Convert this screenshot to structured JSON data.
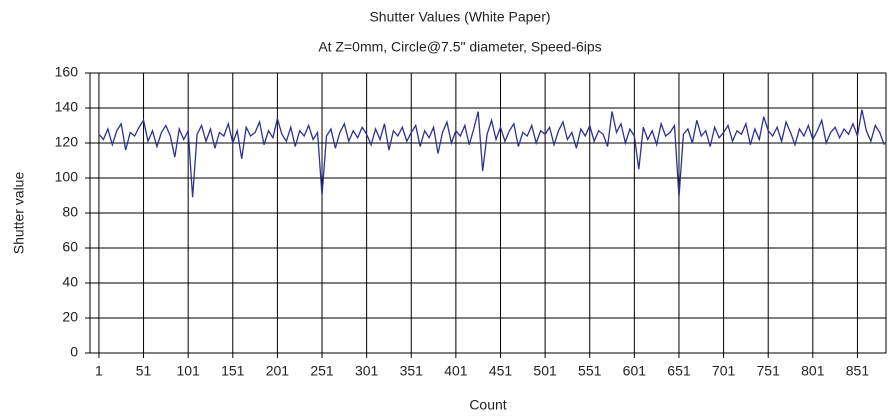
{
  "chart_data": {
    "type": "line",
    "title": "Shutter Values (White Paper)",
    "subtitle": "At Z=0mm, Circle@7.5\" diameter, Speed-6ips",
    "x_label": "Count",
    "y_label": "Shutter value",
    "xlim": [
      -9,
      883
    ],
    "xticks": [
      1,
      51,
      101,
      151,
      201,
      251,
      301,
      351,
      401,
      451,
      501,
      551,
      601,
      651,
      701,
      751,
      801,
      851
    ],
    "ylim": [
      0,
      160
    ],
    "yticks": [
      0,
      20,
      40,
      60,
      80,
      100,
      120,
      140,
      160
    ],
    "grid": true,
    "x": [
      1,
      6,
      11,
      16,
      21,
      26,
      31,
      36,
      41,
      46,
      51,
      56,
      61,
      66,
      71,
      76,
      81,
      86,
      91,
      96,
      101,
      106,
      111,
      116,
      121,
      126,
      131,
      136,
      141,
      146,
      151,
      156,
      161,
      166,
      171,
      176,
      181,
      186,
      191,
      196,
      201,
      206,
      211,
      216,
      221,
      226,
      231,
      236,
      241,
      246,
      251,
      256,
      261,
      266,
      271,
      276,
      281,
      286,
      291,
      296,
      301,
      306,
      311,
      316,
      321,
      326,
      331,
      336,
      341,
      346,
      351,
      356,
      361,
      366,
      371,
      376,
      381,
      386,
      391,
      396,
      401,
      406,
      411,
      416,
      421,
      426,
      431,
      436,
      441,
      446,
      451,
      456,
      461,
      466,
      471,
      476,
      481,
      486,
      491,
      496,
      501,
      506,
      511,
      516,
      521,
      526,
      531,
      536,
      541,
      546,
      551,
      556,
      561,
      566,
      571,
      576,
      581,
      586,
      591,
      596,
      601,
      606,
      611,
      616,
      621,
      626,
      631,
      636,
      641,
      646,
      651,
      656,
      661,
      666,
      671,
      676,
      681,
      686,
      691,
      696,
      701,
      706,
      711,
      716,
      721,
      726,
      731,
      736,
      741,
      746,
      751,
      756,
      761,
      766,
      771,
      776,
      781,
      786,
      791,
      796,
      801,
      806,
      811,
      816,
      821,
      826,
      831,
      836,
      841,
      846,
      851,
      856,
      861,
      866,
      871,
      876,
      881
    ],
    "series": [
      {
        "name": "Shutter value",
        "color": "#2e3192",
        "values": [
          125,
          122,
          128,
          119,
          127,
          131,
          116,
          126,
          124,
          129,
          133,
          121,
          127,
          118,
          126,
          130,
          124,
          112,
          128,
          122,
          127,
          89,
          125,
          130,
          121,
          128,
          117,
          126,
          124,
          131,
          120,
          127,
          111,
          129,
          124,
          126,
          132,
          119,
          127,
          123,
          134,
          125,
          121,
          129,
          118,
          127,
          124,
          130,
          122,
          126,
          90,
          124,
          128,
          117,
          126,
          131,
          121,
          127,
          123,
          129,
          125,
          119,
          128,
          122,
          131,
          116,
          127,
          124,
          129,
          121,
          126,
          130,
          118,
          127,
          123,
          129,
          114,
          126,
          132,
          120,
          127,
          124,
          130,
          119,
          128,
          138,
          104,
          125,
          133,
          122,
          129,
          121,
          127,
          131,
          118,
          126,
          124,
          130,
          120,
          127,
          125,
          129,
          119,
          127,
          132,
          122,
          126,
          117,
          128,
          124,
          130,
          121,
          127,
          125,
          118,
          138,
          126,
          131,
          120,
          128,
          124,
          105,
          129,
          122,
          127,
          119,
          131,
          124,
          126,
          130,
          89,
          125,
          128,
          120,
          133,
          124,
          127,
          118,
          129,
          123,
          126,
          130,
          121,
          127,
          125,
          131,
          119,
          128,
          122,
          135,
          127,
          124,
          129,
          121,
          132,
          126,
          119,
          128,
          124,
          130,
          122,
          127,
          133,
          120,
          126,
          129,
          123,
          128,
          125,
          131,
          124,
          139,
          127,
          121,
          130,
          126,
          119
        ]
      }
    ]
  }
}
